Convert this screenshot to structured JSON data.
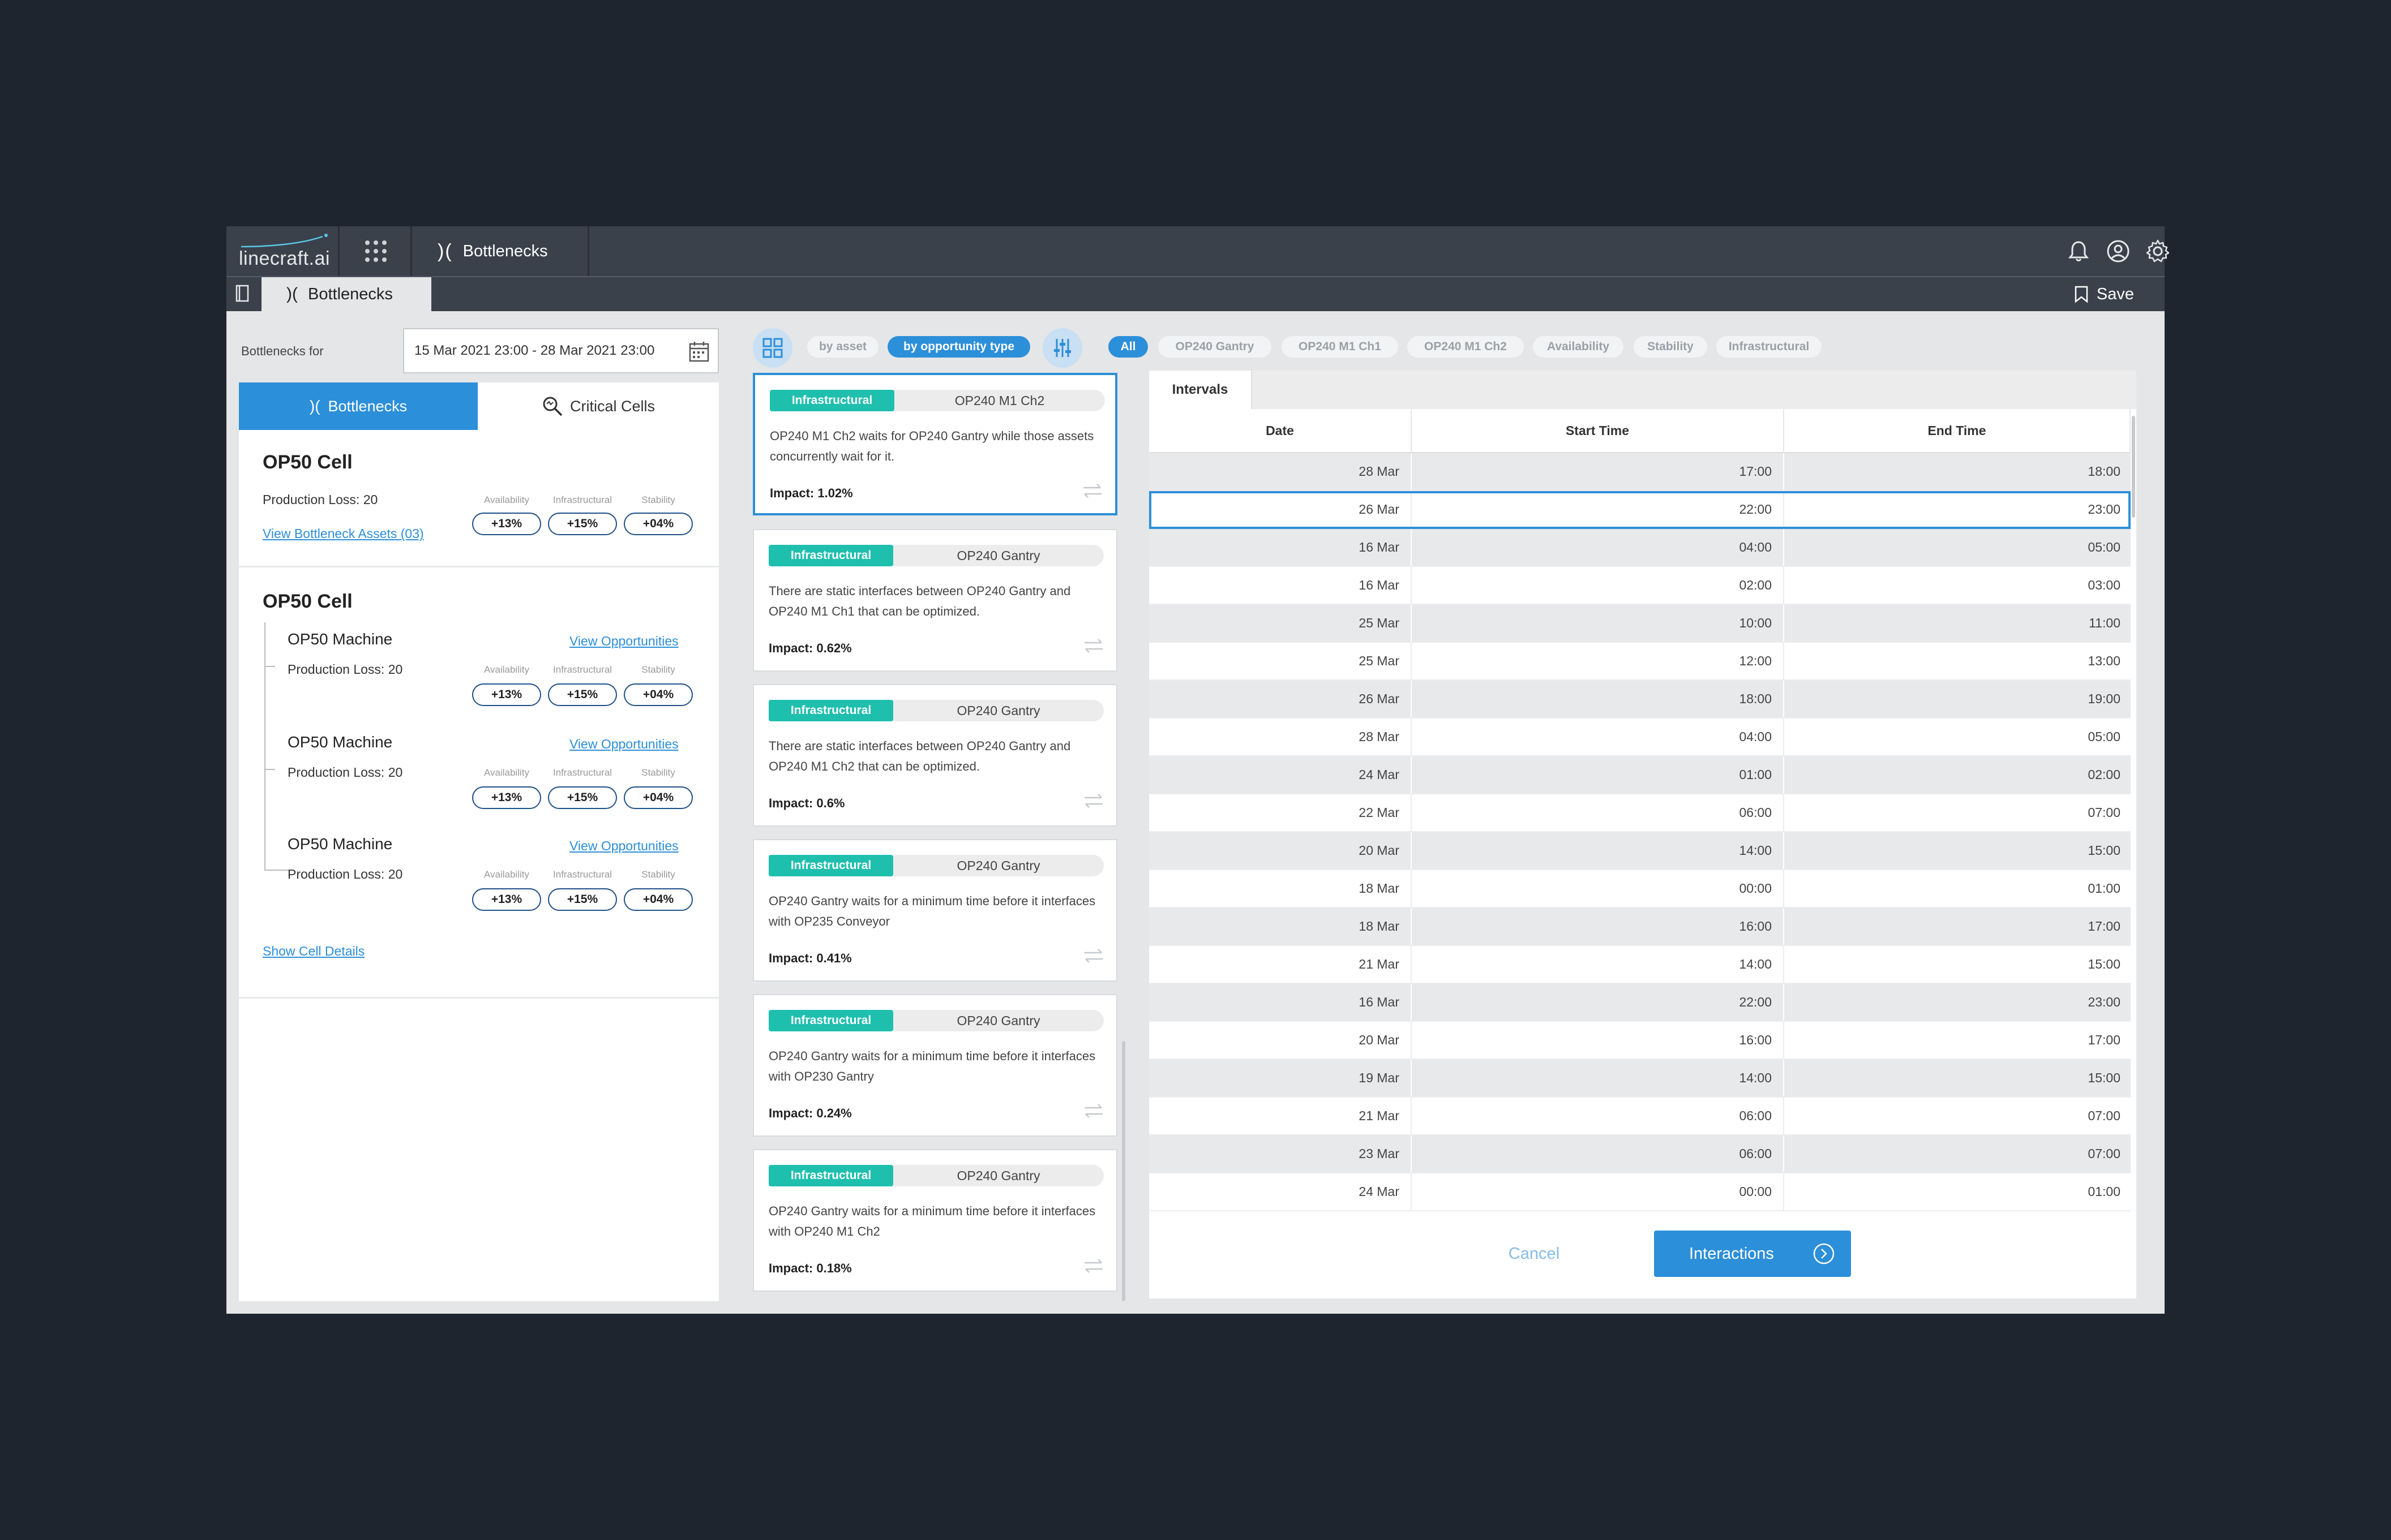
{
  "header": {
    "logo_text": "linecraft.ai",
    "module_label": "Bottlenecks",
    "icons": [
      "bell-icon",
      "user-icon",
      "gear-icon",
      "grid-dots-icon"
    ]
  },
  "subbar": {
    "tab_label": "Bottlenecks",
    "save_label": "Save"
  },
  "left": {
    "bottlenecks_for_label": "Bottlenecks for",
    "date_range": "15 Mar 2021 23:00 - 28 Mar 2021 23:00",
    "tab_bottlenecks": "Bottlenecks",
    "tab_critical": "Critical Cells",
    "metric_labels": [
      "Availability",
      "Infrastructural",
      "Stability"
    ],
    "cell1": {
      "title": "OP50 Cell",
      "production_loss": "Production Loss: 20",
      "link": "View Bottleneck Assets (03)",
      "values": [
        "+13%",
        "+15%",
        "+04%"
      ]
    },
    "cell2": {
      "title": "OP50 Cell",
      "machines": [
        {
          "name": "OP50 Machine",
          "link": "View Opportunities",
          "production_loss": "Production Loss: 20",
          "values": [
            "+13%",
            "+15%",
            "+04%"
          ]
        },
        {
          "name": "OP50 Machine",
          "link": "View Opportunities",
          "production_loss": "Production Loss: 20",
          "values": [
            "+13%",
            "+15%",
            "+04%"
          ]
        },
        {
          "name": "OP50 Machine",
          "link": "View Opportunities",
          "production_loss": "Production Loss: 20",
          "values": [
            "+13%",
            "+15%",
            "+04%"
          ]
        }
      ],
      "show_details": "Show Cell Details"
    }
  },
  "filters": {
    "by_asset": "by asset",
    "by_type": "by opportunity type",
    "chips": [
      "All",
      "OP240 Gantry",
      "OP240 M1 Ch1",
      "OP240 M1 Ch2",
      "Availability",
      "Stability",
      "Infrastructural"
    ],
    "active_chip": "All"
  },
  "opportunities": [
    {
      "tag": "Infrastructural",
      "asset": "OP240 M1 Ch2",
      "desc": "OP240 M1 Ch2 waits for OP240 Gantry while those assets concurrently wait for it.",
      "impact": "Impact: 1.02%"
    },
    {
      "tag": "Infrastructural",
      "asset": "OP240 Gantry",
      "desc": "There are static interfaces between OP240 Gantry and OP240 M1 Ch1 that can be optimized.",
      "impact": "Impact: 0.62%"
    },
    {
      "tag": "Infrastructural",
      "asset": "OP240 Gantry",
      "desc": "There are static interfaces between OP240 Gantry and OP240 M1 Ch2 that can be optimized.",
      "impact": "Impact: 0.6%"
    },
    {
      "tag": "Infrastructural",
      "asset": "OP240 Gantry",
      "desc": "OP240 Gantry waits for a minimum time before it interfaces with OP235 Conveyor",
      "impact": "Impact: 0.41%"
    },
    {
      "tag": "Infrastructural",
      "asset": "OP240 Gantry",
      "desc": "OP240 Gantry waits for a minimum time before it interfaces with OP230 Gantry",
      "impact": "Impact: 0.24%"
    },
    {
      "tag": "Infrastructural",
      "asset": "OP240 Gantry",
      "desc": "OP240 Gantry waits for a minimum time before it interfaces with OP240 M1 Ch2",
      "impact": "Impact: 0.18%"
    }
  ],
  "intervals": {
    "tab_label": "Intervals",
    "columns": [
      "Date",
      "Start Time",
      "End Time"
    ],
    "rows": [
      [
        "28 Mar",
        "17:00",
        "18:00"
      ],
      [
        "26 Mar",
        "22:00",
        "23:00"
      ],
      [
        "16 Mar",
        "04:00",
        "05:00"
      ],
      [
        "16 Mar",
        "02:00",
        "03:00"
      ],
      [
        "25 Mar",
        "10:00",
        "11:00"
      ],
      [
        "25 Mar",
        "12:00",
        "13:00"
      ],
      [
        "26 Mar",
        "18:00",
        "19:00"
      ],
      [
        "28 Mar",
        "04:00",
        "05:00"
      ],
      [
        "24 Mar",
        "01:00",
        "02:00"
      ],
      [
        "22 Mar",
        "06:00",
        "07:00"
      ],
      [
        "20 Mar",
        "14:00",
        "15:00"
      ],
      [
        "18 Mar",
        "00:00",
        "01:00"
      ],
      [
        "18 Mar",
        "16:00",
        "17:00"
      ],
      [
        "21 Mar",
        "14:00",
        "15:00"
      ],
      [
        "16 Mar",
        "22:00",
        "23:00"
      ],
      [
        "20 Mar",
        "16:00",
        "17:00"
      ],
      [
        "19 Mar",
        "14:00",
        "15:00"
      ],
      [
        "21 Mar",
        "06:00",
        "07:00"
      ],
      [
        "23 Mar",
        "06:00",
        "07:00"
      ],
      [
        "24 Mar",
        "00:00",
        "01:00"
      ]
    ],
    "selected_row": 1,
    "cancel_label": "Cancel",
    "interactions_label": "Interactions"
  },
  "colors": {
    "accent": "#2c8fd9",
    "tag": "#1fbfae",
    "frame": "#3b414b",
    "background": "#1e252e"
  }
}
